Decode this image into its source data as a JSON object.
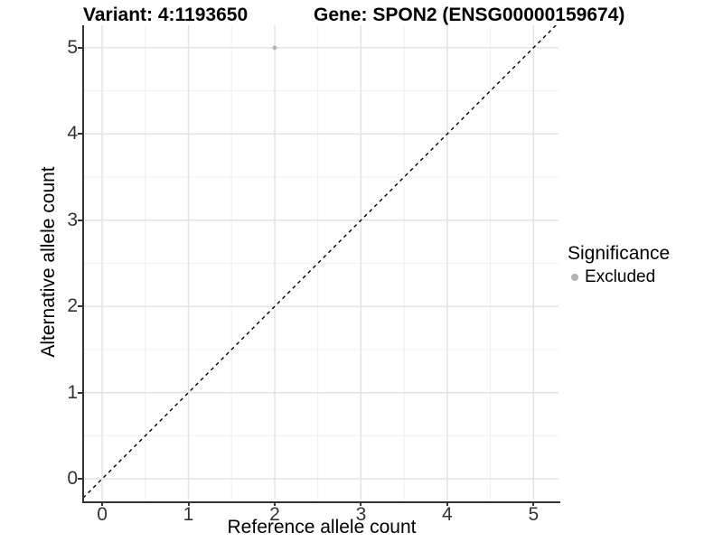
{
  "header": {
    "variant_title": "Variant: 4:1193650",
    "gene_title": "Gene: SPON2 (ENSG00000159674)"
  },
  "chart_data": {
    "type": "scatter",
    "title": "Variant: 4:1193650  /  Gene: SPON2 (ENSG00000159674)",
    "xlabel": "Reference allele count",
    "ylabel": "Alternative allele count",
    "x_ticks": [
      0,
      1,
      2,
      3,
      4,
      5
    ],
    "y_ticks": [
      0,
      1,
      2,
      3,
      4,
      5
    ],
    "xlim": [
      -0.21,
      5.29
    ],
    "ylim": [
      -0.24,
      5.26
    ],
    "grid": {
      "major": true,
      "minor": true
    },
    "series": [
      {
        "name": "Excluded",
        "color": "#b3b3b3",
        "marker": "circle",
        "points": [
          {
            "x": 2,
            "y": 5
          }
        ]
      }
    ],
    "reference_line": {
      "kind": "identity",
      "equation": "y = x",
      "style": "dashed",
      "color": "#000000"
    },
    "legend": {
      "position": "right",
      "title": "Significance",
      "entries": [
        {
          "label": "Excluded",
          "color": "#b3b3b3"
        }
      ]
    }
  },
  "colors": {
    "background": "#ffffff",
    "axis": "#333333",
    "tick_label": "#333333",
    "grid_major": "#e2e2e2",
    "grid_minor": "#f0f0f0",
    "title": "#000000"
  }
}
